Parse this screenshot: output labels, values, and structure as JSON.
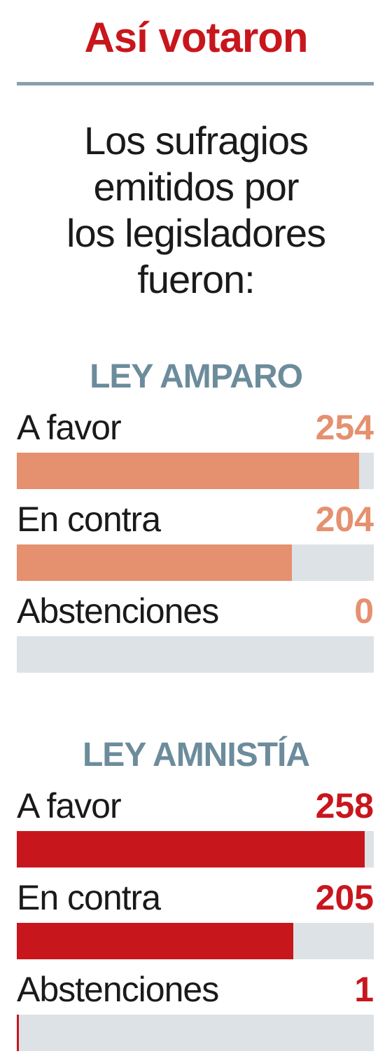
{
  "header": {
    "title": "Así votaron",
    "subtitle_lines": [
      "Los sufragios",
      "emitidos por",
      "los legisladores",
      "fueron:"
    ]
  },
  "colors": {
    "title": "#c8161d",
    "rule": "#8aa0aa",
    "section_title": "#6c8c9c",
    "track": "#dde2e6",
    "series_amparo": "#e5906f",
    "series_amnistia": "#c8161d"
  },
  "chart_data": [
    {
      "type": "bar",
      "title": "LEY AMPARO",
      "categories": [
        "A favor",
        "En contra",
        "Abstenciones"
      ],
      "values": [
        254,
        204,
        0
      ],
      "xlim": [
        0,
        265
      ]
    },
    {
      "type": "bar",
      "title": "LEY AMNISTÍA",
      "categories": [
        "A favor",
        "En contra",
        "Abstenciones"
      ],
      "values": [
        258,
        205,
        1
      ],
      "xlim": [
        0,
        265
      ]
    }
  ]
}
